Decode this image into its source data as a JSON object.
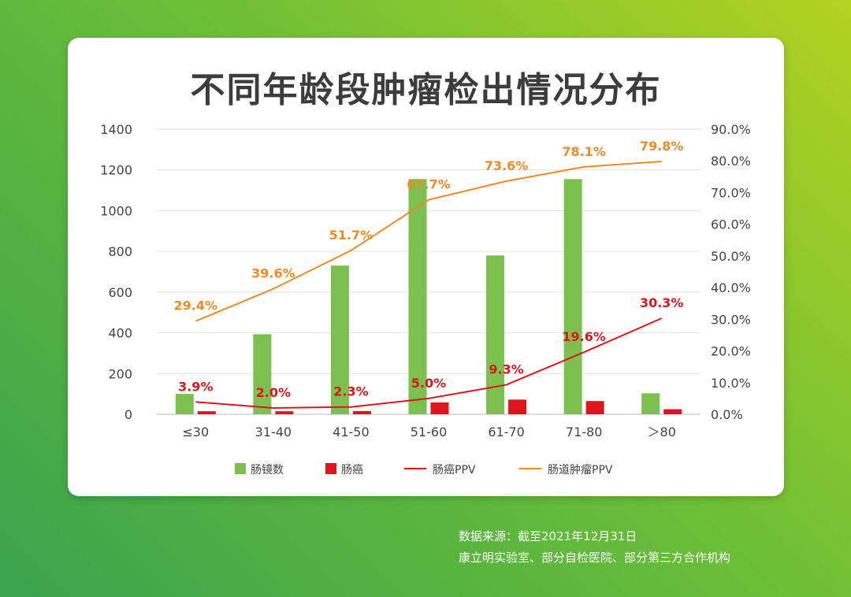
{
  "chart_data": {
    "type": "bar",
    "title": "不同年龄段肿瘤检出情况分布",
    "categories": [
      "≤30",
      "31-40",
      "41-50",
      "51-60",
      "61-70",
      "71-80",
      "＞80"
    ],
    "series": [
      {
        "name": "肠镜数",
        "kind": "bar",
        "axis": "left",
        "color": "#7cc04f",
        "values": [
          100,
          393,
          730,
          1155,
          780,
          1155,
          103
        ]
      },
      {
        "name": "肠癌",
        "kind": "bar",
        "axis": "left",
        "color": "#e0151b",
        "values": [
          15,
          15,
          16,
          58,
          72,
          65,
          25
        ]
      },
      {
        "name": "肠癌PPV",
        "kind": "line",
        "axis": "right",
        "color": "#e0151b",
        "values": [
          3.9,
          2.0,
          2.3,
          5.0,
          9.3,
          19.6,
          30.3
        ],
        "labels": [
          "3.9%",
          "2.0%",
          "2.3%",
          "5.0%",
          "9.3%",
          "19.6%",
          "30.3%"
        ]
      },
      {
        "name": "肠道肿瘤PPV",
        "kind": "line",
        "axis": "right",
        "color": "#f08a24",
        "values": [
          29.4,
          39.6,
          51.7,
          67.7,
          73.6,
          78.1,
          79.8
        ],
        "labels": [
          "29.4%",
          "39.6%",
          "51.7%",
          "67.7%",
          "73.6%",
          "78.1%",
          "79.8%"
        ]
      }
    ],
    "y_left": {
      "range": [
        0,
        1400
      ],
      "ticks": [
        "0",
        "200",
        "400",
        "600",
        "800",
        "1000",
        "1200",
        "1400"
      ]
    },
    "y_right": {
      "range": [
        0,
        90
      ],
      "ticks": [
        "0.0%",
        "10.0%",
        "20.0%",
        "30.0%",
        "40.0%",
        "50.0%",
        "60.0%",
        "70.0%",
        "80.0%",
        "90.0%"
      ]
    },
    "grid": true,
    "legend_position": "bottom"
  },
  "footer": {
    "source_line1": "数据来源：截至2021年12月31日",
    "source_line2": "康立明实验室、部分自检医院、部分第三方合作机构"
  }
}
